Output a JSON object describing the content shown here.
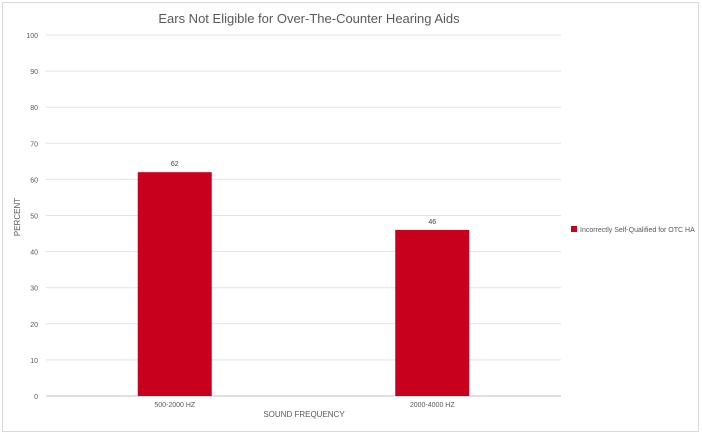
{
  "chart_data": {
    "type": "bar",
    "title": "Ears Not Eligible for Over-The-Counter Hearing Aids",
    "xlabel": "SOUND FREQUENCY",
    "ylabel": "PERCENT",
    "categories": [
      "500-2000 HZ",
      "2000-4000 HZ"
    ],
    "series": [
      {
        "name": "Incorrectly Self-Qualified for OTC HA",
        "values": [
          62,
          46
        ],
        "color": "#c8001e"
      }
    ],
    "data_labels": [
      "62",
      "46"
    ],
    "ylim": [
      0,
      100
    ],
    "yticks": [
      0,
      10,
      20,
      30,
      40,
      50,
      60,
      70,
      80,
      90,
      100
    ],
    "grid": true,
    "legend_position": "right"
  }
}
